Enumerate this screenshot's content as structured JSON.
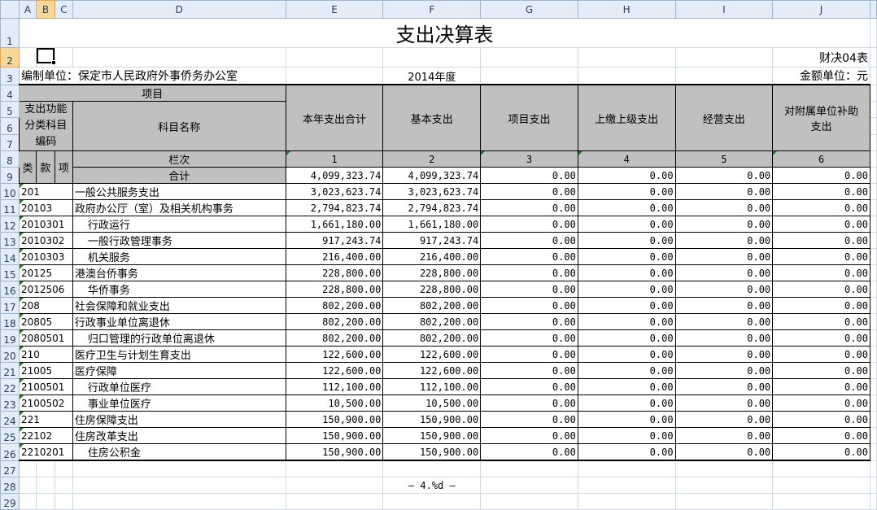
{
  "columns": [
    "A",
    "B",
    "C",
    "D",
    "E",
    "F",
    "G",
    "H",
    "I",
    "J"
  ],
  "title": "支出决算表",
  "form_no": "财决04表",
  "unit_label": "编制单位：保定市人民政府外事侨务办公室",
  "year": "2014年度",
  "currency_label": "金额单位：元",
  "header": {
    "item": "项目",
    "code_group": "支出功能分类科目编码",
    "subject_name": "科目名称",
    "lei": "类",
    "kuan": "款",
    "xiang": "项",
    "column_no": "栏次",
    "total": "合计",
    "cols": [
      "本年支出合计",
      "基本支出",
      "项目支出",
      "上缴上级支出",
      "经营支出",
      "对附属单位补助支出"
    ],
    "col_nums": [
      "1",
      "2",
      "3",
      "4",
      "5",
      "6"
    ]
  },
  "total_values": [
    "4,099,323.74",
    "4,099,323.74",
    "0.00",
    "0.00",
    "0.00",
    "0.00"
  ],
  "rows": [
    {
      "code": "201",
      "name": "一般公共服务支出",
      "values": [
        "3,023,623.74",
        "3,023,623.74",
        "0.00",
        "0.00",
        "0.00",
        "0.00"
      ]
    },
    {
      "code": "20103",
      "name": "政府办公厅（室）及相关机构事务",
      "values": [
        "2,794,823.74",
        "2,794,823.74",
        "0.00",
        "0.00",
        "0.00",
        "0.00"
      ]
    },
    {
      "code": "2010301",
      "name": "行政运行",
      "values": [
        "1,661,180.00",
        "1,661,180.00",
        "0.00",
        "0.00",
        "0.00",
        "0.00"
      ]
    },
    {
      "code": "2010302",
      "name": "一般行政管理事务",
      "values": [
        "917,243.74",
        "917,243.74",
        "0.00",
        "0.00",
        "0.00",
        "0.00"
      ]
    },
    {
      "code": "2010303",
      "name": "机关服务",
      "values": [
        "216,400.00",
        "216,400.00",
        "0.00",
        "0.00",
        "0.00",
        "0.00"
      ]
    },
    {
      "code": "20125",
      "name": "港澳台侨事务",
      "values": [
        "228,800.00",
        "228,800.00",
        "0.00",
        "0.00",
        "0.00",
        "0.00"
      ]
    },
    {
      "code": "2012506",
      "name": "华侨事务",
      "values": [
        "228,800.00",
        "228,800.00",
        "0.00",
        "0.00",
        "0.00",
        "0.00"
      ]
    },
    {
      "code": "208",
      "name": "社会保障和就业支出",
      "values": [
        "802,200.00",
        "802,200.00",
        "0.00",
        "0.00",
        "0.00",
        "0.00"
      ]
    },
    {
      "code": "20805",
      "name": "行政事业单位离退休",
      "values": [
        "802,200.00",
        "802,200.00",
        "0.00",
        "0.00",
        "0.00",
        "0.00"
      ]
    },
    {
      "code": "2080501",
      "name": "归口管理的行政单位离退休",
      "values": [
        "802,200.00",
        "802,200.00",
        "0.00",
        "0.00",
        "0.00",
        "0.00"
      ]
    },
    {
      "code": "210",
      "name": "医疗卫生与计划生育支出",
      "values": [
        "122,600.00",
        "122,600.00",
        "0.00",
        "0.00",
        "0.00",
        "0.00"
      ]
    },
    {
      "code": "21005",
      "name": "医疗保障",
      "values": [
        "122,600.00",
        "122,600.00",
        "0.00",
        "0.00",
        "0.00",
        "0.00"
      ]
    },
    {
      "code": "2100501",
      "name": "行政单位医疗",
      "values": [
        "112,100.00",
        "112,100.00",
        "0.00",
        "0.00",
        "0.00",
        "0.00"
      ]
    },
    {
      "code": "2100502",
      "name": "事业单位医疗",
      "values": [
        "10,500.00",
        "10,500.00",
        "0.00",
        "0.00",
        "0.00",
        "0.00"
      ]
    },
    {
      "code": "221",
      "name": "住房保障支出",
      "values": [
        "150,900.00",
        "150,900.00",
        "0.00",
        "0.00",
        "0.00",
        "0.00"
      ]
    },
    {
      "code": "22102",
      "name": "住房改革支出",
      "values": [
        "150,900.00",
        "150,900.00",
        "0.00",
        "0.00",
        "0.00",
        "0.00"
      ]
    },
    {
      "code": "2210201",
      "name": "住房公积金",
      "values": [
        "150,900.00",
        "150,900.00",
        "0.00",
        "0.00",
        "0.00",
        "0.00"
      ]
    }
  ],
  "footer": "— 4.%d —"
}
